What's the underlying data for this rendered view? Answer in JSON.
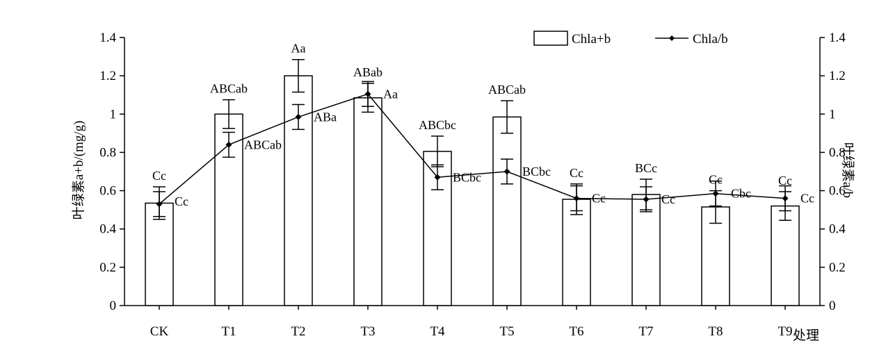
{
  "chart_data": {
    "type": "bar",
    "categories": [
      "CK",
      "T1",
      "T2",
      "T3",
      "T4",
      "T5",
      "T6",
      "T7",
      "T8",
      "T9"
    ],
    "xlabel": "处理",
    "ylabel_left": "叶绿素a+b/(mg/g)",
    "ylabel_right": "叶绿素a/b",
    "ylim_left": [
      0,
      1.4
    ],
    "ylim_right": [
      0,
      1.4
    ],
    "yticks": [
      "0",
      "0.2",
      "0.4",
      "0.6",
      "0.8",
      "1",
      "1.2",
      "1.4"
    ],
    "grid": false,
    "legend_position": "top-right",
    "series": [
      {
        "name": "Chla+b",
        "kind": "bar",
        "axis": "left",
        "values": [
          0.535,
          1.0,
          1.2,
          1.085,
          0.805,
          0.985,
          0.555,
          0.58,
          0.515,
          0.52
        ],
        "errors": [
          0.085,
          0.075,
          0.085,
          0.075,
          0.08,
          0.085,
          0.08,
          0.08,
          0.085,
          0.075
        ],
        "labels": [
          "Cc",
          "ABCab",
          "Aa",
          "ABab",
          "ABCbc",
          "ABCab",
          "Cc",
          "BCc",
          "Cc",
          "Cc"
        ]
      },
      {
        "name": "Chla/b",
        "kind": "line",
        "axis": "right",
        "values": [
          0.53,
          0.84,
          0.985,
          1.105,
          0.67,
          0.7,
          0.56,
          0.555,
          0.585,
          0.56
        ],
        "errors": [
          0.065,
          0.065,
          0.065,
          0.065,
          0.065,
          0.065,
          0.065,
          0.065,
          0.065,
          0.065
        ],
        "labels": [
          "Cc",
          "ABCab",
          "ABa",
          "Aa",
          "BCbc",
          "BCbc",
          "Cc",
          "Cc",
          "Cbc",
          "Cc"
        ]
      }
    ]
  }
}
